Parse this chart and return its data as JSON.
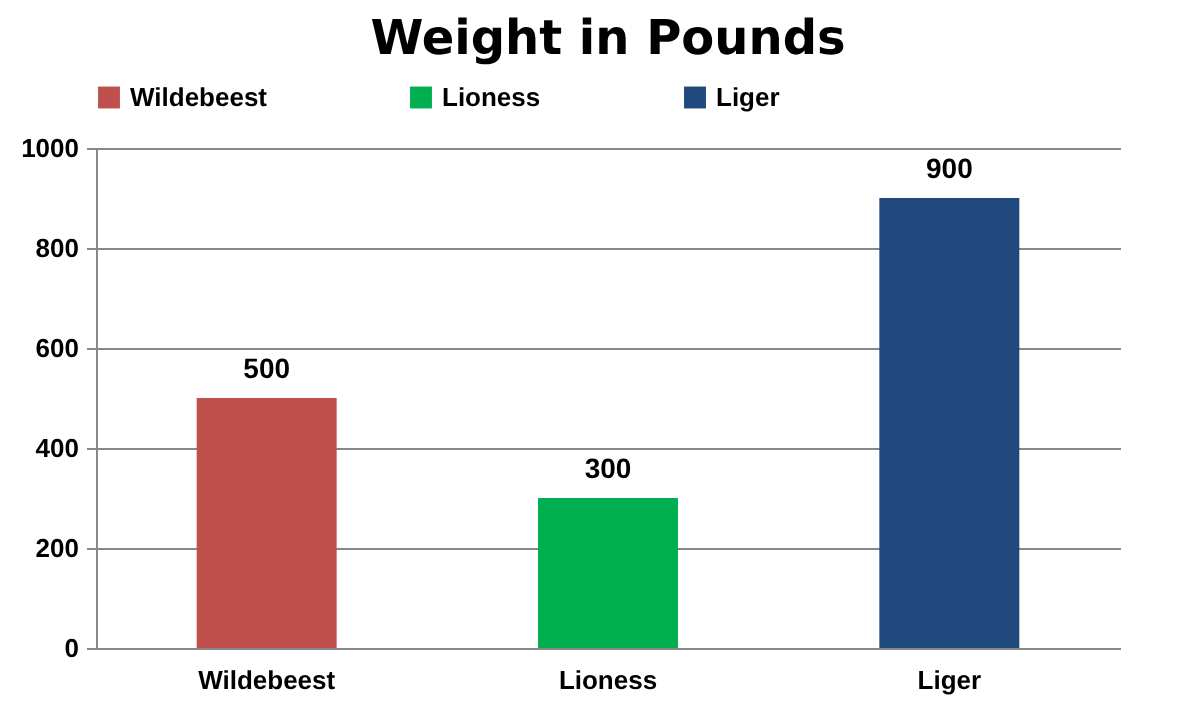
{
  "chart_data": {
    "type": "bar",
    "title": "Weight in Pounds",
    "categories": [
      "Wildebeest",
      "Lioness",
      "Liger"
    ],
    "series": [
      {
        "name": "Wildebeest",
        "color": "#c0504d",
        "values": [
          500,
          null,
          null
        ]
      },
      {
        "name": "Lioness",
        "color": "#00b050",
        "values": [
          null,
          300,
          null
        ]
      },
      {
        "name": "Liger",
        "color": "#1f497d",
        "values": [
          null,
          null,
          900
        ]
      }
    ],
    "ylim": [
      0,
      1000
    ],
    "yticks": [
      0,
      200,
      400,
      600,
      800,
      1000
    ],
    "grid": "y",
    "legend": "top",
    "data_labels": true
  }
}
